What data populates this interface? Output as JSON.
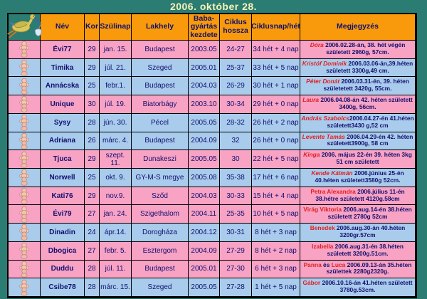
{
  "title": "2006. október 28.",
  "colors": {
    "background_teal": "#2b7c72",
    "header_orange": "#f89a0b",
    "row_pink": "#f8a2c4",
    "row_blue": "#a9cbec",
    "text_navy": "#10106e",
    "name_red": "#e41e1e",
    "title_cream": "#f7f4b6",
    "border": "#000000"
  },
  "icons": {
    "stork": "stork-icon",
    "baby": "baby-tower-icon"
  },
  "table": {
    "headers": [
      "Név",
      "Kor",
      "Szülinap",
      "Lakhely",
      "Baba-gyártás kezdete",
      "Ciklus hossza",
      "Ciklusnap/hét",
      "Megjegyzés"
    ],
    "rows": [
      {
        "tone": "pink",
        "nev": "Évi77",
        "kor": "29",
        "szulinap": "jan. 15.",
        "lakhely": "Budapest",
        "baba": "2003.05",
        "ciklus": "24-27",
        "ciklusnap": "34 hét + 4 nap",
        "megjegyzes": [
          {
            "t": "Dóra",
            "c": "r",
            "i": true
          },
          {
            "t": " 2006.02.28-án, 38. hét végén született 2960g, 57cm.",
            "c": "n"
          }
        ]
      },
      {
        "tone": "blue",
        "nev": "Timika",
        "kor": "29",
        "szulinap": "júl. 21.",
        "lakhely": "Szeged",
        "baba": "2005.01",
        "ciklus": "25-37",
        "ciklusnap": "33 hét + 5 nap",
        "megjegyzes": [
          {
            "t": "Kristóf Dominik",
            "c": "r",
            "i": true
          },
          {
            "t": " 2006.03.06-án,39.héten született 3300g,49 cm.",
            "c": "n"
          }
        ]
      },
      {
        "tone": "blue",
        "nev": "Annácska",
        "kor": "25",
        "szulinap": "febr.1.",
        "lakhely": "Budapest",
        "baba": "2004.03",
        "ciklus": "26-29",
        "ciklusnap": "30 hét + 1 nap",
        "megjegyzes": [
          {
            "t": "Péter Donát",
            "c": "r",
            "i": true
          },
          {
            "t": " 2006.03.31-én, 39. héten születetett 3420g, 55cm.",
            "c": "n"
          }
        ]
      },
      {
        "tone": "pink",
        "nev": "Unique",
        "kor": "30",
        "szulinap": "júl. 19.",
        "lakhely": "Biatorbágy",
        "baba": "2003.10",
        "ciklus": "30-34",
        "ciklusnap": "29 hét + 0 nap",
        "megjegyzes": [
          {
            "t": "Laura",
            "c": "r",
            "i": true
          },
          {
            "t": " 2006.04.08-án 42. héten született 3400g, 56cm.",
            "c": "n"
          }
        ]
      },
      {
        "tone": "blue",
        "nev": "Sysy",
        "kor": "28",
        "szulinap": "jún. 30.",
        "lakhely": "Pécel",
        "baba": "2005.05",
        "ciklus": "28-32",
        "ciklusnap": "26 hét + 2 nap",
        "megjegyzes": [
          {
            "t": "András Szabolcs",
            "c": "r",
            "i": true
          },
          {
            "t": "2006.04.27-én 41.héten született3430 g,52 cm",
            "c": "n"
          }
        ]
      },
      {
        "tone": "blue",
        "nev": "Adriana",
        "kor": "26",
        "szulinap": "márc. 4.",
        "lakhely": "Budapest",
        "baba": "2004.09",
        "ciklus": "32",
        "ciklusnap": "26 hét + 0 nap",
        "megjegyzes": [
          {
            "t": "Levente Tamás",
            "c": "r",
            "i": true
          },
          {
            "t": " 2006.04.29-én 42. héten született3900g, 58 cm",
            "c": "n"
          }
        ]
      },
      {
        "tone": "pink",
        "nev": "Tjuca",
        "kor": "29",
        "szulinap": "szept. 11.",
        "lakhely": "Dunakeszi",
        "baba": "2005.05",
        "ciklus": "30",
        "ciklusnap": "22 hét + 5 nap",
        "megjegyzes": [
          {
            "t": "Kinga",
            "c": "r",
            "i": true
          },
          {
            "t": " 2006. május 22-én 39. héten 3kg 51 cm született",
            "c": "n"
          }
        ]
      },
      {
        "tone": "blue",
        "nev": "Norwell",
        "kor": "25",
        "szulinap": "okt. 9.",
        "lakhely": "GY-M-S megye",
        "baba": "2005.08",
        "ciklus": "35-38",
        "ciklusnap": "17 hét + 6 nap",
        "megjegyzes": [
          {
            "t": "Kende Kálmán",
            "c": "r",
            "i": true
          },
          {
            "t": " 2006.június 25-én 40.héten született3580g 52cm.",
            "c": "n"
          }
        ]
      },
      {
        "tone": "pink",
        "nev": "Kati76",
        "kor": "29",
        "szulinap": "nov.9.",
        "lakhely": "Sződ",
        "baba": "2004.03",
        "ciklus": "30-33",
        "ciklusnap": "15 hét + 4 nap",
        "megjegyzes": [
          {
            "t": "Petra Alexandra",
            "c": "r"
          },
          {
            "t": " 2006.július 11-én 38.hétre született 4120g.58cm",
            "c": "n"
          }
        ]
      },
      {
        "tone": "pink",
        "nev": "Évi79",
        "kor": "27",
        "szulinap": "jan. 24.",
        "lakhely": "Szigethalom",
        "baba": "2004.11",
        "ciklus": "25-35",
        "ciklusnap": "10 hét + 5 nap",
        "megjegyzes": [
          {
            "t": "Virág Viktoria",
            "c": "r"
          },
          {
            "t": " 2006.aug.14-én 38.héten született 2780g 52cm",
            "c": "n"
          }
        ]
      },
      {
        "tone": "blue",
        "nev": "Dinadin",
        "kor": "24",
        "szulinap": "ápr.14.",
        "lakhely": "Dorogháza",
        "baba": "2004.12",
        "ciklus": "30-31",
        "ciklusnap": "8 hét + 3 nap",
        "megjegyzes": [
          {
            "t": "Benedek",
            "c": "r"
          },
          {
            "t": " 2006.aug.30-án 40.héten 3200gr.57cm",
            "c": "n"
          }
        ]
      },
      {
        "tone": "pink",
        "nev": "Dbogica",
        "kor": "27",
        "szulinap": "febr. 5.",
        "lakhely": "Esztergom",
        "baba": "2004.09",
        "ciklus": "27-29",
        "ciklusnap": "8 hét + 2 nap",
        "megjegyzes": [
          {
            "t": "Izabella",
            "c": "r"
          },
          {
            "t": " 2006.aug.31-én 38.héten született 3200g.51cm.",
            "c": "n"
          }
        ]
      },
      {
        "tone": "pink",
        "nev": "Duddu",
        "kor": "28",
        "szulinap": "júl. 11.",
        "lakhely": "Budapest",
        "baba": "2005.01",
        "ciklus": "27-30",
        "ciklusnap": "6 hét + 3 nap",
        "megjegyzes": [
          {
            "t": "Panna",
            "c": "r"
          },
          {
            "t": " és ",
            "c": "n"
          },
          {
            "t": "Luca",
            "c": "r"
          },
          {
            "t": " 2006.09.13-án 35.héten születtek 2280g2320g.",
            "c": "n"
          }
        ]
      },
      {
        "tone": "blue",
        "nev": "Csibe78",
        "kor": "28",
        "szulinap": "márc. 15.",
        "lakhely": "Szeged",
        "baba": "2005.05",
        "ciklus": "27-28",
        "ciklusnap": "1 hét + 5 nap",
        "megjegyzes": [
          {
            "t": "Gábor",
            "c": "r"
          },
          {
            "t": " 2006.10.16-án 41.héten született 3780g.53cm.",
            "c": "n"
          }
        ]
      }
    ]
  }
}
